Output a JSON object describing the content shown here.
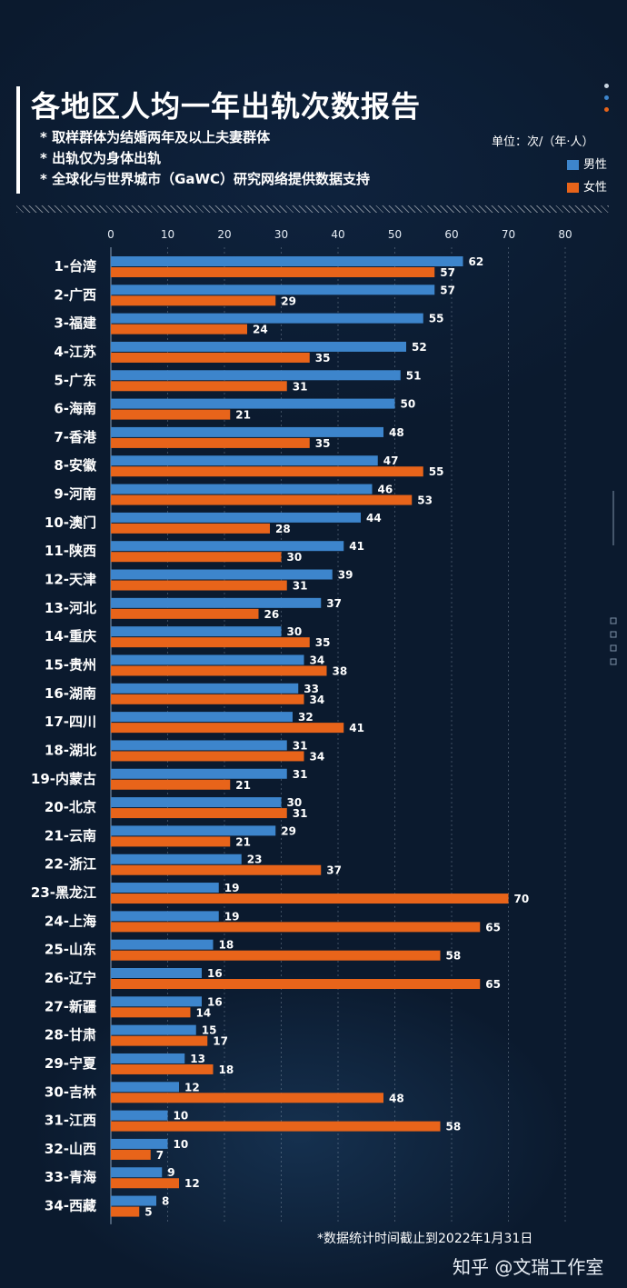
{
  "title": "各地区人均一年出轨次数报告",
  "notes": [
    "* 取样群体为结婚两年及以上夫妻群体",
    "* 出轨仅为身体出轨",
    "* 全球化与世界城市（GaWC）研究网络提供数据支持"
  ],
  "unit": "单位：次/（年·人）",
  "source_note": "*数据统计时间截止到2022年1月31日",
  "watermark": "知乎 @文瑞工作室",
  "colors": {
    "male": "#3d85cc",
    "female": "#e8641a",
    "background": "#0b1a2e"
  },
  "chart_data": {
    "type": "bar",
    "orientation": "horizontal",
    "title": "各地区人均一年出轨次数报告",
    "xlim": [
      0,
      80
    ],
    "xticks": [
      0,
      10,
      20,
      30,
      40,
      50,
      60,
      70,
      80
    ],
    "grid": true,
    "legend_position": "top-right",
    "categories": [
      "1-台湾",
      "2-广西",
      "3-福建",
      "4-江苏",
      "5-广东",
      "6-海南",
      "7-香港",
      "8-安徽",
      "9-河南",
      "10-澳门",
      "11-陕西",
      "12-天津",
      "13-河北",
      "14-重庆",
      "15-贵州",
      "16-湖南",
      "17-四川",
      "18-湖北",
      "19-内蒙古",
      "20-北京",
      "21-云南",
      "22-浙江",
      "23-黑龙江",
      "24-上海",
      "25-山东",
      "26-辽宁",
      "27-新疆",
      "28-甘肃",
      "29-宁夏",
      "30-吉林",
      "31-江西",
      "32-山西",
      "33-青海",
      "34-西藏"
    ],
    "series": [
      {
        "name": "男性",
        "values": [
          62,
          57,
          55,
          52,
          51,
          50,
          48,
          47,
          46,
          44,
          41,
          39,
          37,
          30,
          34,
          33,
          32,
          31,
          31,
          30,
          29,
          23,
          19,
          19,
          18,
          16,
          16,
          15,
          13,
          12,
          10,
          10,
          9,
          8
        ]
      },
      {
        "name": "女性",
        "values": [
          57,
          29,
          24,
          35,
          31,
          21,
          35,
          55,
          53,
          28,
          30,
          31,
          26,
          35,
          38,
          34,
          41,
          34,
          21,
          31,
          21,
          37,
          70,
          65,
          58,
          65,
          14,
          17,
          18,
          48,
          58,
          7,
          12,
          5
        ]
      }
    ]
  }
}
